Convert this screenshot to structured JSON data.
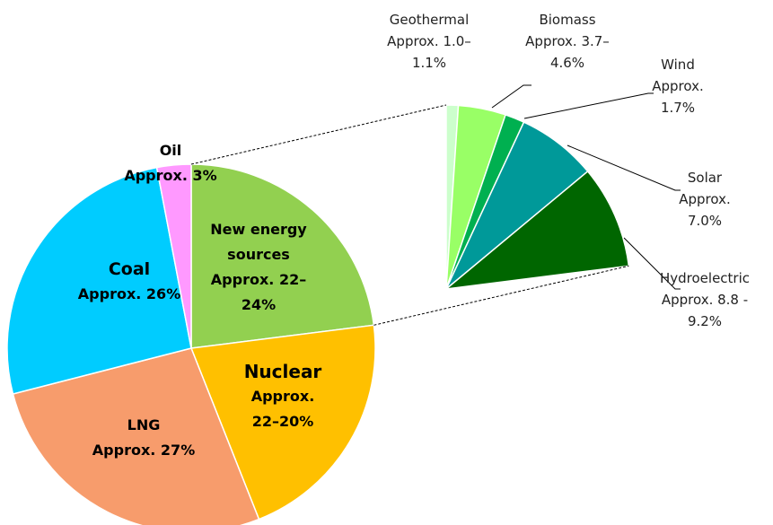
{
  "chart_data": {
    "type": "pie-of-pie",
    "categories": [
      "New energy sources",
      "Nuclear",
      "LNG",
      "Coal",
      "Oil"
    ],
    "values": [
      23,
      21,
      27,
      26,
      3
    ],
    "value_labels": [
      "Approx. 22–24%",
      "Approx. 22–20%",
      "Approx. 27%",
      "Approx. 26%",
      "Approx. 3%"
    ],
    "colors": [
      "#92d050",
      "#ffc000",
      "#f79c6c",
      "#00ccff",
      "#ff99ff"
    ],
    "sub": {
      "categories": [
        "Geothermal",
        "Biomass",
        "Wind",
        "Solar",
        "Hydroelectric"
      ],
      "values": [
        1.05,
        4.15,
        1.7,
        7.0,
        9.0
      ],
      "value_labels": [
        "Approx. 1.0–1.1%",
        "Approx. 3.7–4.6%",
        "Approx. 1.7%",
        "Approx. 7.0%",
        "Approx. 8.8 - 9.2%"
      ],
      "colors": [
        "#ccffcc",
        "#99ff66",
        "#00b050",
        "#009999",
        "#006600"
      ]
    }
  }
}
